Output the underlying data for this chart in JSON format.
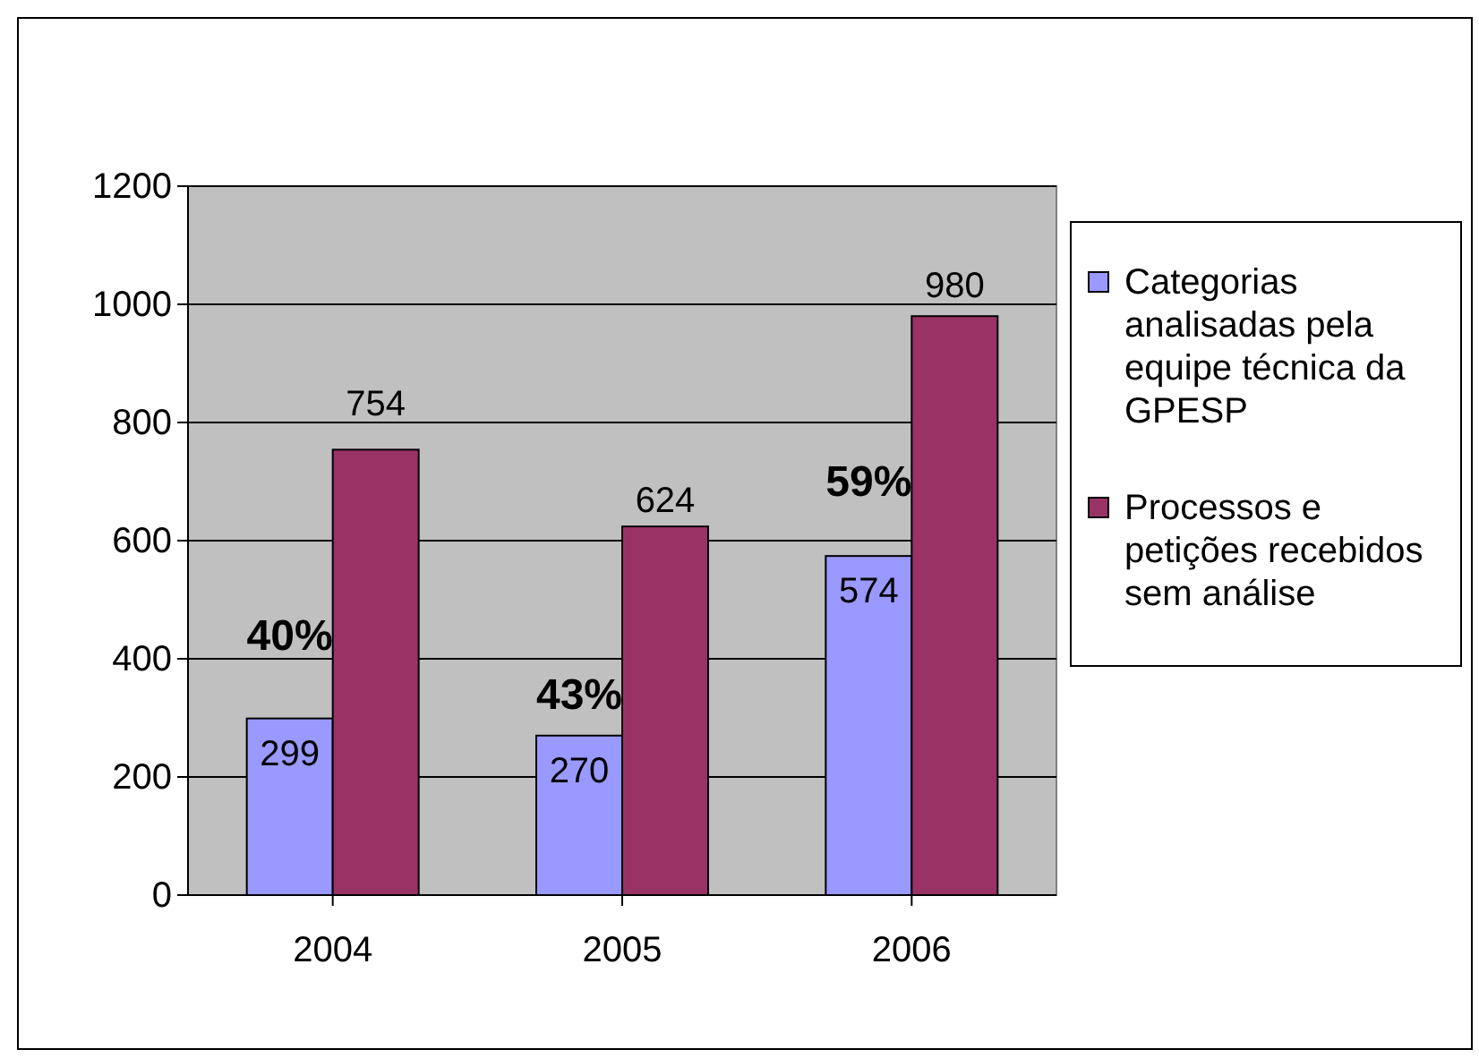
{
  "chart_data": {
    "type": "bar",
    "categories": [
      "2004",
      "2005",
      "2006"
    ],
    "series": [
      {
        "name": "Categorias analisadas pela equipe técnica da GPESP",
        "color": "#9999ff",
        "values": [
          299,
          270,
          574
        ]
      },
      {
        "name": "Processos e petições recebidos sem análise",
        "color": "#993366",
        "values": [
          754,
          624,
          980
        ]
      }
    ],
    "ylim": [
      0,
      1200
    ],
    "yticks": [
      0,
      200,
      400,
      600,
      800,
      1000,
      1200
    ],
    "grid": "y",
    "legend": "right",
    "data_labels": true,
    "annotations": [
      {
        "text": "40%",
        "x": "2004",
        "y": 440
      },
      {
        "text": "43%",
        "x": "2005",
        "y": 340
      },
      {
        "text": "59%",
        "x": "2006",
        "y": 700
      }
    ]
  }
}
